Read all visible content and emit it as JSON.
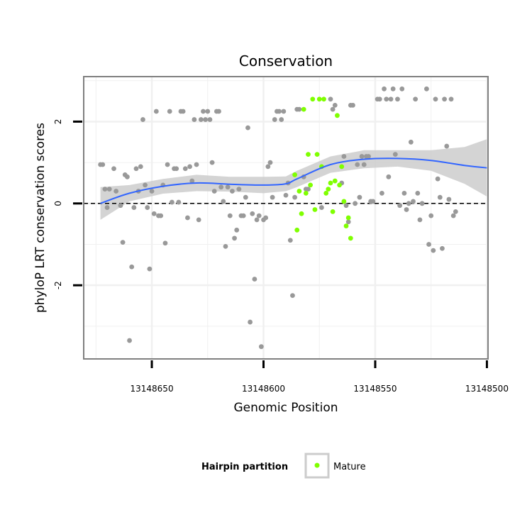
{
  "chart_data": {
    "type": "scatter",
    "title": "Conservation",
    "xlabel": "Genomic Position",
    "ylabel": "phyloP LRT conservation scores",
    "x_reversed": true,
    "xlim": [
      13148680.5,
      13148499.5
    ],
    "ylim": [
      -3.8,
      3.1
    ],
    "x_ticks": [
      13148650,
      13148600,
      13148550,
      13148500
    ],
    "x_tick_labels": [
      "13148650",
      "13148600",
      "13148550",
      "13148500"
    ],
    "y_ticks": [
      -2,
      0,
      2
    ],
    "y_tick_labels": [
      "-2",
      "0",
      "2"
    ],
    "reference_line": {
      "y": 0,
      "style": "dashed"
    },
    "colors": {
      "other": "#999999",
      "mature": "#7fff00",
      "smooth": "#3366ff",
      "ribbon": "#cccccc",
      "panel_bg": "#ffffff",
      "grid": "#f0f0f0",
      "border": "#808080"
    },
    "legend": {
      "title": "Hairpin partition",
      "entries": [
        {
          "label": "Mature",
          "color": "#7fff00"
        }
      ]
    },
    "series": [
      {
        "name": "Other",
        "points": [
          [
            13148673,
            0.95
          ],
          [
            13148672,
            0.95
          ],
          [
            13148671,
            0.35
          ],
          [
            13148670,
            -0.1
          ],
          [
            13148669,
            0.35
          ],
          [
            13148667,
            0.85
          ],
          [
            13148666,
            0.3
          ],
          [
            13148664,
            -0.05
          ],
          [
            13148663,
            -0.95
          ],
          [
            13148662,
            0.7
          ],
          [
            13148661,
            0.65
          ],
          [
            13148660,
            -3.35
          ],
          [
            13148659,
            -1.55
          ],
          [
            13148658,
            -0.1
          ],
          [
            13148657,
            0.85
          ],
          [
            13148656,
            0.3
          ],
          [
            13148655,
            0.9
          ],
          [
            13148654,
            2.05
          ],
          [
            13148653,
            0.45
          ],
          [
            13148652,
            -0.1
          ],
          [
            13148651,
            -1.6
          ],
          [
            13148650,
            0.3
          ],
          [
            13148649,
            -0.25
          ],
          [
            13148648,
            2.25
          ],
          [
            13148647,
            -0.3
          ],
          [
            13148646,
            -0.3
          ],
          [
            13148645,
            0.45
          ],
          [
            13148644,
            -0.97
          ],
          [
            13148643,
            0.95
          ],
          [
            13148642,
            2.25
          ],
          [
            13148641,
            0.03
          ],
          [
            13148640,
            0.85
          ],
          [
            13148639,
            0.85
          ],
          [
            13148638,
            0.03
          ],
          [
            13148637,
            2.25
          ],
          [
            13148636,
            2.25
          ],
          [
            13148635,
            0.85
          ],
          [
            13148634,
            -0.35
          ],
          [
            13148633,
            0.9
          ],
          [
            13148632,
            0.55
          ],
          [
            13148631,
            2.05
          ],
          [
            13148630,
            0.95
          ],
          [
            13148629,
            -0.4
          ],
          [
            13148628,
            2.05
          ],
          [
            13148627,
            2.25
          ],
          [
            13148626,
            2.05
          ],
          [
            13148625,
            2.25
          ],
          [
            13148624,
            2.05
          ],
          [
            13148623,
            1.0
          ],
          [
            13148622,
            0.3
          ],
          [
            13148621,
            2.25
          ],
          [
            13148620,
            2.25
          ],
          [
            13148619,
            0.4
          ],
          [
            13148618,
            0.05
          ],
          [
            13148617,
            -1.05
          ],
          [
            13148616,
            0.4
          ],
          [
            13148615,
            -0.3
          ],
          [
            13148614,
            0.3
          ],
          [
            13148613,
            -0.85
          ],
          [
            13148612,
            -0.65
          ],
          [
            13148611,
            0.35
          ],
          [
            13148610,
            -0.3
          ],
          [
            13148609,
            -0.3
          ],
          [
            13148608,
            0.15
          ],
          [
            13148607,
            1.85
          ],
          [
            13148606,
            -2.9
          ],
          [
            13148605,
            -0.25
          ],
          [
            13148604,
            -1.85
          ],
          [
            13148603,
            -0.4
          ],
          [
            13148602,
            -0.3
          ],
          [
            13148601,
            -3.5
          ],
          [
            13148600,
            -0.4
          ],
          [
            13148599,
            -0.35
          ],
          [
            13148598,
            0.9
          ],
          [
            13148597,
            1.0
          ],
          [
            13148596,
            0.15
          ],
          [
            13148595,
            2.05
          ],
          [
            13148594,
            2.25
          ],
          [
            13148593,
            2.25
          ],
          [
            13148592,
            2.05
          ],
          [
            13148591,
            2.25
          ],
          [
            13148590,
            0.2
          ],
          [
            13148589,
            0.5
          ],
          [
            13148588,
            -0.9
          ],
          [
            13148587,
            -2.25
          ],
          [
            13148586,
            0.15
          ],
          [
            13148585,
            2.3
          ],
          [
            13148584,
            2.3
          ],
          [
            13148582,
            0.65
          ],
          [
            13148581,
            0.35
          ],
          [
            13148580,
            0.35
          ],
          [
            13148574,
            -0.1
          ],
          [
            13148570,
            2.55
          ],
          [
            13148569,
            2.3
          ],
          [
            13148568,
            2.4
          ],
          [
            13148565,
            0.5
          ],
          [
            13148564,
            1.15
          ],
          [
            13148563,
            -0.05
          ],
          [
            13148562,
            -0.45
          ],
          [
            13148561,
            2.4
          ],
          [
            13148560,
            2.4
          ],
          [
            13148559,
            0.0
          ],
          [
            13148558,
            0.95
          ],
          [
            13148557,
            0.15
          ],
          [
            13148556,
            1.15
          ],
          [
            13148555,
            0.95
          ],
          [
            13148554,
            1.15
          ],
          [
            13148553,
            1.15
          ],
          [
            13148552,
            0.05
          ],
          [
            13148551,
            0.05
          ],
          [
            13148549,
            2.55
          ],
          [
            13148548,
            2.55
          ],
          [
            13148547,
            0.25
          ],
          [
            13148546,
            2.8
          ],
          [
            13148545,
            2.55
          ],
          [
            13148544,
            0.65
          ],
          [
            13148543,
            2.55
          ],
          [
            13148542,
            2.8
          ],
          [
            13148541,
            1.2
          ],
          [
            13148540,
            2.55
          ],
          [
            13148539,
            -0.05
          ],
          [
            13148538,
            2.8
          ],
          [
            13148537,
            0.25
          ],
          [
            13148536,
            -0.15
          ],
          [
            13148535,
            0.0
          ],
          [
            13148534,
            1.5
          ],
          [
            13148533,
            0.05
          ],
          [
            13148532,
            2.55
          ],
          [
            13148531,
            0.25
          ],
          [
            13148530,
            -0.4
          ],
          [
            13148529,
            0.0
          ],
          [
            13148527,
            2.8
          ],
          [
            13148526,
            -1.0
          ],
          [
            13148525,
            -0.3
          ],
          [
            13148524,
            -1.15
          ],
          [
            13148523,
            2.55
          ],
          [
            13148522,
            0.6
          ],
          [
            13148521,
            0.15
          ],
          [
            13148520,
            -1.1
          ],
          [
            13148519,
            2.55
          ],
          [
            13148518,
            1.4
          ],
          [
            13148517,
            0.1
          ],
          [
            13148516,
            2.55
          ],
          [
            13148515,
            -0.3
          ],
          [
            13148514,
            -0.2
          ]
        ]
      },
      {
        "name": "Mature",
        "points": [
          [
            13148586,
            0.7
          ],
          [
            13148585,
            -0.65
          ],
          [
            13148584,
            0.3
          ],
          [
            13148583,
            -0.25
          ],
          [
            13148582,
            2.3
          ],
          [
            13148581,
            0.25
          ],
          [
            13148580,
            1.2
          ],
          [
            13148579,
            0.45
          ],
          [
            13148578,
            2.55
          ],
          [
            13148577,
            -0.15
          ],
          [
            13148576,
            1.2
          ],
          [
            13148575,
            2.55
          ],
          [
            13148574,
            0.9
          ],
          [
            13148573,
            2.55
          ],
          [
            13148572,
            0.25
          ],
          [
            13148571,
            0.35
          ],
          [
            13148570,
            0.5
          ],
          [
            13148569,
            -0.2
          ],
          [
            13148568,
            0.55
          ],
          [
            13148567,
            2.15
          ],
          [
            13148566,
            0.45
          ],
          [
            13148565,
            0.9
          ],
          [
            13148564,
            0.05
          ],
          [
            13148563,
            -0.55
          ],
          [
            13148562,
            -0.35
          ],
          [
            13148561,
            -0.85
          ]
        ]
      }
    ],
    "smooth": {
      "x": [
        13148673,
        13148660,
        13148645,
        13148630,
        13148615,
        13148600,
        13148590,
        13148585,
        13148570,
        13148555,
        13148540,
        13148525,
        13148510,
        13148500
      ],
      "y": [
        0.0,
        0.25,
        0.42,
        0.5,
        0.47,
        0.45,
        0.48,
        0.6,
        0.95,
        1.08,
        1.1,
        1.05,
        0.93,
        0.87
      ],
      "se": [
        0.4,
        0.2,
        0.18,
        0.2,
        0.18,
        0.2,
        0.18,
        0.2,
        0.2,
        0.22,
        0.2,
        0.25,
        0.45,
        0.7
      ]
    }
  }
}
